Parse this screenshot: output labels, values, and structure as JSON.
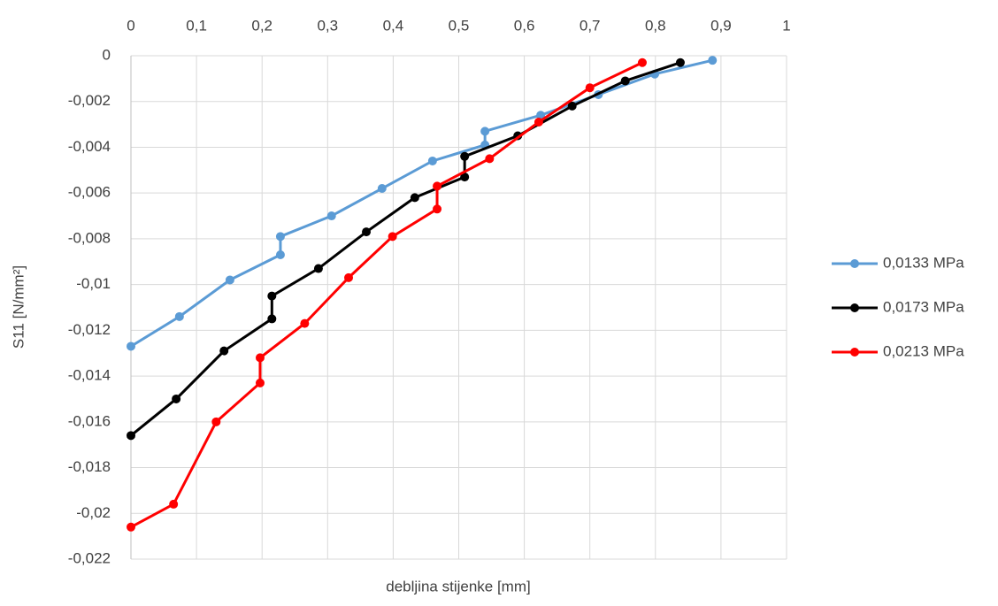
{
  "chart_data": {
    "type": "line",
    "x_label": "debljina stijenke [mm]",
    "y_label": "S11 [N/mm²]",
    "xlim": [
      0,
      1
    ],
    "xticks": [
      0,
      {
        "value": 0.1,
        "label": "0,1"
      },
      {
        "value": 0.2,
        "label": "0,2"
      },
      {
        "value": 0.3,
        "label": "0,3"
      },
      {
        "value": 0.4,
        "label": "0,4"
      },
      {
        "value": 0.5,
        "label": "0,5"
      },
      {
        "value": 0.6,
        "label": "0,6"
      },
      {
        "value": 0.7,
        "label": "0,7"
      },
      {
        "value": 0.8,
        "label": "0,8"
      },
      {
        "value": 0.9,
        "label": "0,9"
      },
      1
    ],
    "ylim": [
      -0.022,
      0
    ],
    "yticks": [
      0,
      {
        "value": -0.002,
        "label": "-0,002"
      },
      {
        "value": -0.004,
        "label": "-0,004"
      },
      {
        "value": -0.006,
        "label": "-0,006"
      },
      {
        "value": -0.008,
        "label": "-0,008"
      },
      {
        "value": -0.01,
        "label": "-0,01"
      },
      {
        "value": -0.012,
        "label": "-0,012"
      },
      {
        "value": -0.014,
        "label": "-0,014"
      },
      {
        "value": -0.016,
        "label": "-0,016"
      },
      {
        "value": -0.018,
        "label": "-0,018"
      },
      {
        "value": -0.02,
        "label": "-0,02"
      },
      {
        "value": -0.022,
        "label": "-0,022"
      }
    ],
    "x_axis_position": "top",
    "grid": true,
    "legend": "right",
    "series": [
      {
        "name": "0,0133 MPa",
        "color": "#5b9bd5",
        "x": [
          0,
          0.074,
          0.151,
          0.228,
          0.228,
          0.306,
          0.383,
          0.46,
          0.54,
          0.54,
          0.625,
          0.713,
          0.799,
          0.887
        ],
        "values": [
          -0.0127,
          -0.0114,
          -0.0098,
          -0.0087,
          -0.0079,
          -0.007,
          -0.0058,
          -0.0046,
          -0.0039,
          -0.0033,
          -0.0026,
          -0.0017,
          -0.0008,
          -0.0002
        ]
      },
      {
        "name": "0,0173 MPa",
        "color": "#000000",
        "x": [
          0,
          0.069,
          0.142,
          0.215,
          0.215,
          0.286,
          0.359,
          0.433,
          0.509,
          0.509,
          0.59,
          0.673,
          0.754,
          0.838
        ],
        "values": [
          -0.0166,
          -0.015,
          -0.0129,
          -0.0115,
          -0.0105,
          -0.0093,
          -0.0077,
          -0.0062,
          -0.0053,
          -0.0044,
          -0.0035,
          -0.0022,
          -0.0011,
          -0.0003
        ]
      },
      {
        "name": "0,0213 MPa",
        "color": "#ff0000",
        "x": [
          0,
          0.065,
          0.13,
          0.197,
          0.197,
          0.265,
          0.332,
          0.399,
          0.467,
          0.467,
          0.547,
          0.622,
          0.7,
          0.78
        ],
        "values": [
          -0.0206,
          -0.0196,
          -0.016,
          -0.0143,
          -0.0132,
          -0.0117,
          -0.0097,
          -0.0079,
          -0.0067,
          -0.0057,
          -0.0045,
          -0.0029,
          -0.0014,
          -0.0003
        ]
      }
    ]
  }
}
